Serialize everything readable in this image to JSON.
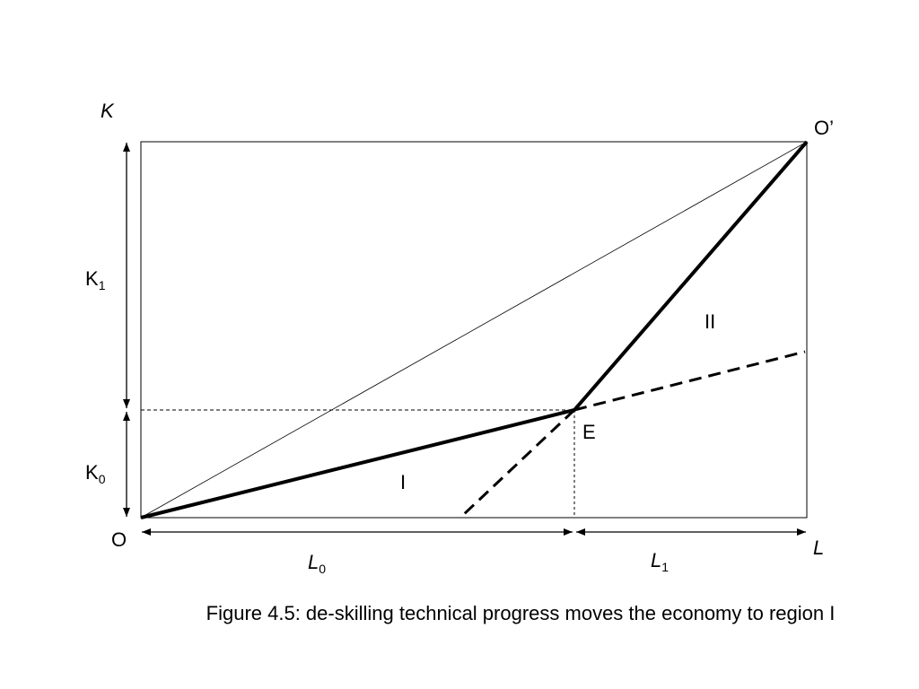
{
  "axes": {
    "vertical": "K",
    "horizontal": "L"
  },
  "points": {
    "origin": "O",
    "opposite_origin": "O’",
    "equilibrium": "E"
  },
  "regions": {
    "region_1": "I",
    "region_2": "II"
  },
  "segments": {
    "k1": {
      "base": "K",
      "sub": "1"
    },
    "k0": {
      "base": "K",
      "sub": "0"
    },
    "l0": {
      "base": "L",
      "sub": "0"
    },
    "l1": {
      "base": "L",
      "sub": "1"
    }
  },
  "caption": "Figure 4.5: de-skilling technical progress moves the economy to region I"
}
